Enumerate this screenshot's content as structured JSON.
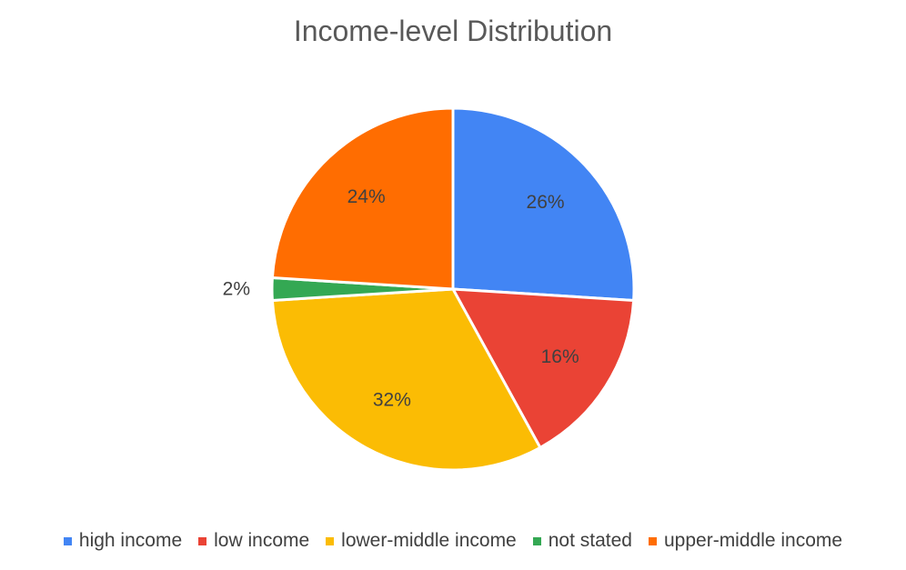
{
  "chart_data": {
    "type": "pie",
    "title": "Income-level Distribution",
    "categories": [
      "high income",
      "low income",
      "lower-middle income",
      "not stated",
      "upper-middle income"
    ],
    "values": [
      26,
      16,
      32,
      2,
      24
    ],
    "labels": [
      "26%",
      "16%",
      "32%",
      "2%",
      "24%"
    ],
    "colors": [
      "#4285F4",
      "#EA4335",
      "#FBBC04",
      "#34A853",
      "#FF6D01"
    ],
    "legend_position": "bottom",
    "start_angle_deg": 0,
    "direction": "clockwise"
  }
}
